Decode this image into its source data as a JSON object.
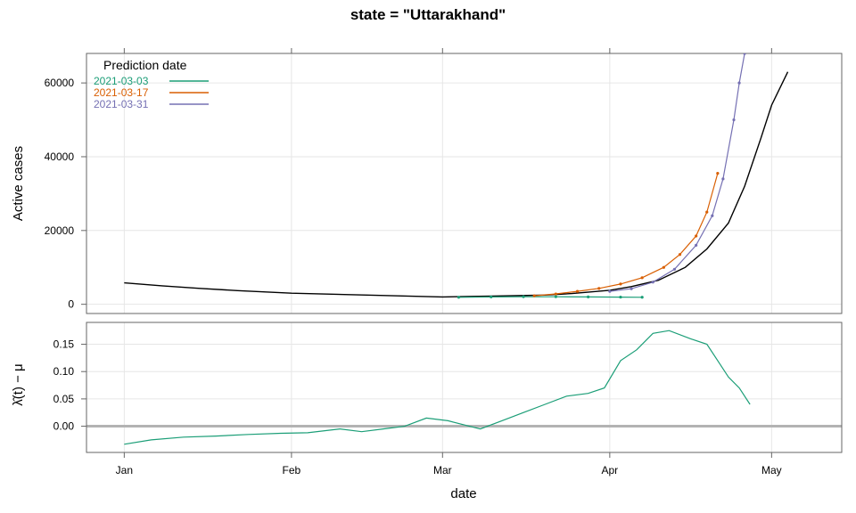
{
  "chart_data": {
    "title": "state = \"Uttarakhand\"",
    "xlabel": "date",
    "x_ticks": [
      "Jan",
      "Feb",
      "Mar",
      "Apr",
      "May"
    ],
    "x_tick_dates": [
      "2021-01-01",
      "2021-02-01",
      "2021-03-01",
      "2021-04-01",
      "2021-05-01"
    ],
    "xlim": [
      "2020-12-25",
      "2021-05-14"
    ],
    "grid": true,
    "panels": [
      {
        "type": "line",
        "ylabel": "Active cases",
        "ylim": [
          -2500,
          68000
        ],
        "y_ticks": [
          0,
          20000,
          40000,
          60000
        ],
        "legend": {
          "title": "Prediction date",
          "placement": "top-left",
          "entries": [
            {
              "label": "2021-03-03",
              "color": "#1b9e77"
            },
            {
              "label": "2021-03-17",
              "color": "#d95f02"
            },
            {
              "label": "2021-03-31",
              "color": "#7570b3"
            }
          ]
        },
        "series": [
          {
            "color": "#000000",
            "x": [
              "2021-01-01",
              "2021-01-08",
              "2021-01-15",
              "2021-01-22",
              "2021-02-01",
              "2021-02-15",
              "2021-03-01",
              "2021-03-10",
              "2021-03-20",
              "2021-03-25",
              "2021-04-01",
              "2021-04-05",
              "2021-04-10",
              "2021-04-15",
              "2021-04-19",
              "2021-04-23",
              "2021-04-26",
              "2021-04-29",
              "2021-05-01",
              "2021-05-04"
            ],
            "y": [
              5800,
              5000,
              4300,
              3700,
              3000,
              2500,
              2000,
              2200,
              2500,
              2900,
              3800,
              4800,
              6500,
              10000,
              15000,
              22000,
              32000,
              45000,
              54000,
              63000
            ]
          },
          {
            "name": "2021-03-03",
            "color": "#1b9e77",
            "x": [
              "2021-03-04",
              "2021-03-10",
              "2021-03-16",
              "2021-03-22",
              "2021-03-28",
              "2021-04-03",
              "2021-04-07"
            ],
            "y": [
              1900,
              2000,
              2050,
              2050,
              2000,
              1950,
              1900
            ]
          },
          {
            "name": "2021-03-17",
            "color": "#d95f02",
            "x": [
              "2021-03-18",
              "2021-03-22",
              "2021-03-26",
              "2021-03-30",
              "2021-04-03",
              "2021-04-07",
              "2021-04-11",
              "2021-04-14",
              "2021-04-17",
              "2021-04-19",
              "2021-04-21"
            ],
            "y": [
              2300,
              2800,
              3500,
              4300,
              5500,
              7200,
              10000,
              13500,
              18500,
              25000,
              35500
            ]
          },
          {
            "name": "2021-03-31",
            "color": "#7570b3",
            "x": [
              "2021-04-01",
              "2021-04-05",
              "2021-04-09",
              "2021-04-13",
              "2021-04-17",
              "2021-04-20",
              "2021-04-22",
              "2021-04-24",
              "2021-04-25",
              "2021-04-26"
            ],
            "y": [
              3500,
              4200,
              6000,
              9500,
              16000,
              24000,
              34000,
              50000,
              60000,
              68000
            ]
          }
        ]
      },
      {
        "type": "line",
        "ylabel": "λ̂(t) − μ",
        "ylim": [
          -0.048,
          0.19
        ],
        "y_ticks": [
          0.0,
          0.05,
          0.1,
          0.15
        ],
        "y_tick_labels": [
          "0.00",
          "0.05",
          "0.10",
          "0.15"
        ],
        "reference_line": 0,
        "series": [
          {
            "color": "#1b9e77",
            "x": [
              "2021-01-01",
              "2021-01-06",
              "2021-01-12",
              "2021-01-18",
              "2021-01-24",
              "2021-01-30",
              "2021-02-04",
              "2021-02-10",
              "2021-02-14",
              "2021-02-18",
              "2021-02-22",
              "2021-02-26",
              "2021-03-02",
              "2021-03-06",
              "2021-03-08",
              "2021-03-12",
              "2021-03-16",
              "2021-03-20",
              "2021-03-24",
              "2021-03-28",
              "2021-03-31",
              "2021-04-03",
              "2021-04-06",
              "2021-04-09",
              "2021-04-12",
              "2021-04-16",
              "2021-04-19",
              "2021-04-21",
              "2021-04-23",
              "2021-04-25",
              "2021-04-27"
            ],
            "y": [
              -0.033,
              -0.025,
              -0.02,
              -0.018,
              -0.015,
              -0.013,
              -0.012,
              -0.005,
              -0.01,
              -0.005,
              0.0,
              0.015,
              0.01,
              0.0,
              -0.005,
              0.01,
              0.025,
              0.04,
              0.055,
              0.06,
              0.07,
              0.12,
              0.14,
              0.17,
              0.175,
              0.16,
              0.15,
              0.12,
              0.09,
              0.07,
              0.04
            ]
          }
        ]
      }
    ]
  }
}
